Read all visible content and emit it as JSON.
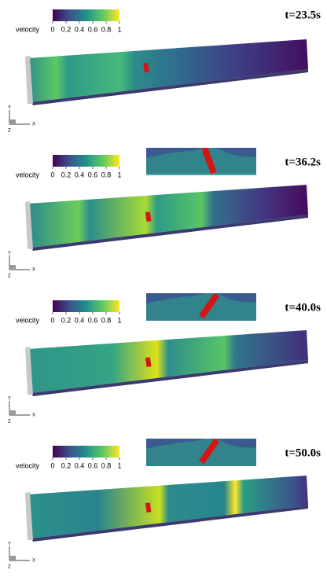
{
  "colorbar": {
    "label": "velocity",
    "ticks": [
      0,
      0.2,
      0.4,
      0.6,
      0.8,
      1
    ],
    "range": [
      0,
      1
    ]
  },
  "triad": {
    "y": "Y",
    "x": "X",
    "z": "Z"
  },
  "panels": [
    {
      "time": "t=23.5s"
    },
    {
      "time": "t=36.2s"
    },
    {
      "time": "t=40.0s"
    },
    {
      "time": "t=50.0s"
    }
  ]
}
